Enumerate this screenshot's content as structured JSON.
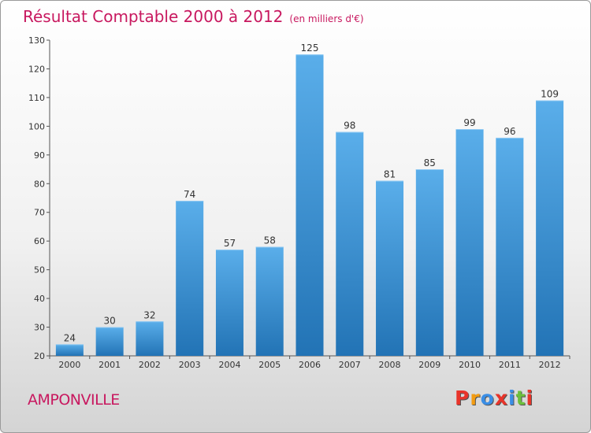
{
  "header": {
    "title": "Résultat Comptable 2000 à 2012",
    "subtitle": "(en milliers d'€)"
  },
  "footer": {
    "commune": "AMPONVILLE",
    "logo_letters": [
      "P",
      "r",
      "o",
      "x",
      "i",
      "t",
      "i"
    ]
  },
  "colors": {
    "title": "#c8185f",
    "bar_top": "#5aaeea",
    "bar_bottom": "#2273b5",
    "logo": [
      "#e8342a",
      "#f39c12",
      "#3a8ee6",
      "#e8342a",
      "#3a8ee6",
      "#6cbf3b",
      "#e8342a"
    ]
  },
  "chart_data": {
    "type": "bar",
    "title": "Résultat Comptable 2000 à 2012",
    "xlabel": "",
    "ylabel": "",
    "ylim": [
      20,
      130
    ],
    "yticks": [
      20,
      30,
      40,
      50,
      60,
      70,
      80,
      90,
      100,
      110,
      120,
      130
    ],
    "categories": [
      "2000",
      "2001",
      "2002",
      "2003",
      "2004",
      "2005",
      "2006",
      "2007",
      "2008",
      "2009",
      "2010",
      "2011",
      "2012"
    ],
    "values": [
      24,
      30,
      32,
      74,
      57,
      58,
      125,
      98,
      81,
      85,
      99,
      96,
      109
    ]
  }
}
